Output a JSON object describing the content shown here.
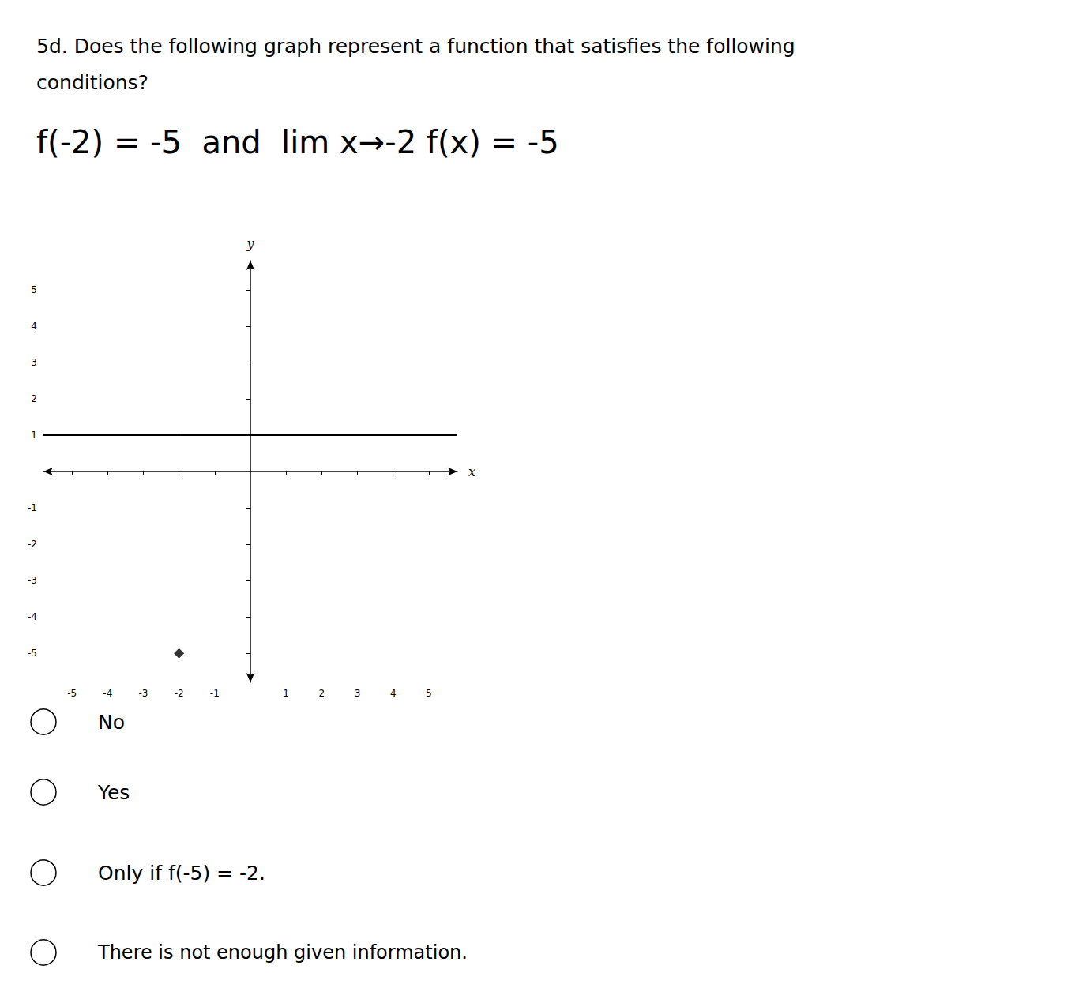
{
  "chart_data": {
    "type": "line",
    "title": "5d. Does the following graph represent a function that satisfies the following\nconditions?",
    "subtitle": "f(-2) = -5  and  lim x→-2 f(x) = -5",
    "xlabel": "x",
    "ylabel": "y",
    "xlim": [
      -5.8,
      5.8
    ],
    "ylim": [
      -5.8,
      5.8
    ],
    "xticks": [
      -5,
      -4,
      -3,
      -2,
      -1,
      1,
      2,
      3,
      4,
      5
    ],
    "yticks": [
      -5,
      -4,
      -3,
      -2,
      -1,
      1,
      2,
      3,
      4,
      5
    ],
    "grid": false,
    "series": [
      {
        "type": "line",
        "x": [
          -5.8,
          -2
        ],
        "values": [
          1,
          1
        ],
        "color": "#000000"
      },
      {
        "type": "line",
        "x": [
          -2,
          5.8
        ],
        "values": [
          1,
          1
        ],
        "color": "#000000"
      },
      {
        "type": "scatter",
        "x": [
          -2
        ],
        "values": [
          -5
        ],
        "color": "#000000",
        "marker": "diamond"
      }
    ],
    "annotations": [
      "No",
      "Yes",
      "Only if f(-5) = -2.",
      "There is not enough given information."
    ]
  }
}
